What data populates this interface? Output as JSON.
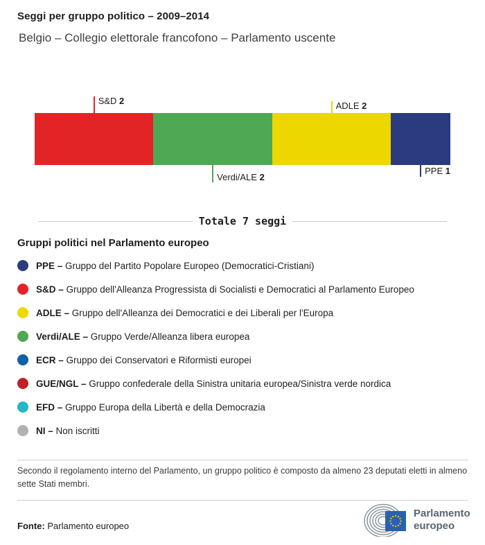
{
  "header": {
    "title": "Seggi per gruppo politico – 2009–2014",
    "subtitle": "Belgio – Collegio elettorale francofono – Parlamento uscente"
  },
  "chart_data": {
    "type": "bar",
    "variant": "horizontal-stacked-seat-bar",
    "title": "Seggi per gruppo politico – 2009–2014",
    "subtitle": "Belgio – Collegio elettorale francofono – Parlamento uscente",
    "categories": [
      "S&D",
      "Verdi/ALE",
      "ADLE",
      "PPE"
    ],
    "values": [
      2,
      2,
      2,
      1
    ],
    "total_seats": 7,
    "total_label": "Totale 7 seggi",
    "segments": [
      {
        "group": "S&D",
        "seats": 2,
        "color": "#e32427",
        "callout": "above"
      },
      {
        "group": "Verdi/ALE",
        "seats": 2,
        "color": "#4fa853",
        "callout": "below"
      },
      {
        "group": "ADLE",
        "seats": 2,
        "color": "#ecd800",
        "callout": "above"
      },
      {
        "group": "PPE",
        "seats": 1,
        "color": "#2b3b7f",
        "callout": "below"
      }
    ]
  },
  "legend": {
    "heading": "Gruppi politici nel Parlamento europeo",
    "items": [
      {
        "label": "PPE –",
        "desc": "Gruppo del Partito Popolare Europeo (Democratici-Cristiani)",
        "color": "#2b3b7f"
      },
      {
        "label": "S&D –",
        "desc": "Gruppo dell'Alleanza Progressista di Socialisti e Democratici al Parlamento Europeo",
        "color": "#e32427"
      },
      {
        "label": "ADLE –",
        "desc": "Gruppo dell'Alleanza dei Democratici e dei Liberali per l'Europa",
        "color": "#eed800"
      },
      {
        "label": "Verdi/ALE –",
        "desc": "Gruppo Verde/Alleanza libera europea",
        "color": "#4fa853"
      },
      {
        "label": "ECR –",
        "desc": "Gruppo dei Conservatori e Riformisti europei",
        "color": "#1160a8"
      },
      {
        "label": "GUE/NGL –",
        "desc": "Gruppo confederale della Sinistra unitaria europea/Sinistra verde nordica",
        "color": "#bf2026"
      },
      {
        "label": "EFD –",
        "desc": "Gruppo Europa della Libertà e della Democrazia",
        "color": "#22b8c5"
      },
      {
        "label": "NI –",
        "desc": "Non iscritti",
        "color": "#b2b2b2"
      }
    ]
  },
  "footnote": "Secondo il regolamento interno del Parlamento, un gruppo politico è composto da almeno 23 deputati eletti in almeno sette Stati membri.",
  "footer": {
    "source_label": "Fonte:",
    "source": "Parlamento europeo",
    "logo": {
      "line1": "Parlamento",
      "line2": "europeo"
    }
  }
}
